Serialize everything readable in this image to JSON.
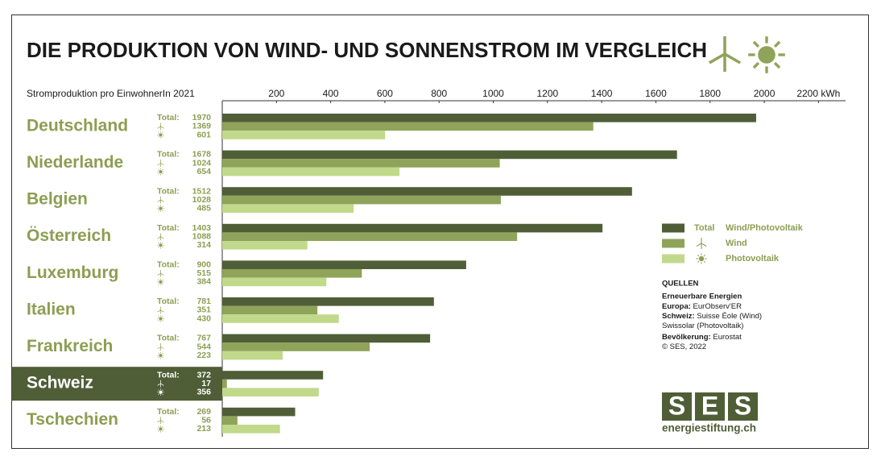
{
  "chart_data": {
    "type": "bar",
    "orientation": "horizontal",
    "title": "DIE PRODUKTION VON WIND- UND SONNENSTROM IM VERGLEICH",
    "subtitle": "Stromproduktion pro EinwohnerIn 2021",
    "categories": [
      "Deutschland",
      "Niederlande",
      "Belgien",
      "Österreich",
      "Luxemburg",
      "Italien",
      "Frankreich",
      "Schweiz",
      "Tschechien"
    ],
    "highlight": "Schweiz",
    "total_label": "Total:",
    "series": [
      {
        "name": "Wind/Photovoltaik",
        "color": "#4f5e36",
        "values": [
          1970,
          1678,
          1512,
          1403,
          900,
          781,
          767,
          372,
          269
        ]
      },
      {
        "name": "Wind",
        "color": "#8fa35a",
        "values": [
          1369,
          1024,
          1028,
          1088,
          515,
          351,
          544,
          17,
          56
        ]
      },
      {
        "name": "Photovoltaik",
        "color": "#c1d98a",
        "values": [
          601,
          654,
          485,
          314,
          384,
          430,
          223,
          356,
          213
        ]
      }
    ],
    "legend_total_label": "Total",
    "xlim": [
      0,
      2300
    ],
    "xticks": [
      200,
      400,
      600,
      800,
      1000,
      1200,
      1400,
      1600,
      1800,
      2000,
      {
        "value": 2200,
        "label": "2200 kWh"
      }
    ],
    "sources": {
      "heading": "QUELLEN",
      "group": "Erneuerbare Energien",
      "lines": [
        {
          "label": "Europa:",
          "text": "EurObserv'ER"
        },
        {
          "label": "Schweiz:",
          "text": "Suisse Éole (Wind)"
        },
        {
          "label": "",
          "text": "Swissolar (Photovoltaik)"
        },
        {
          "label": "Bevölkerung:",
          "text": "Eurostat"
        },
        {
          "label": "",
          "text": "© SES, 2022"
        }
      ]
    },
    "logo": {
      "letters": [
        "S",
        "E",
        "S"
      ],
      "url": "energiestiftung.ch"
    }
  }
}
